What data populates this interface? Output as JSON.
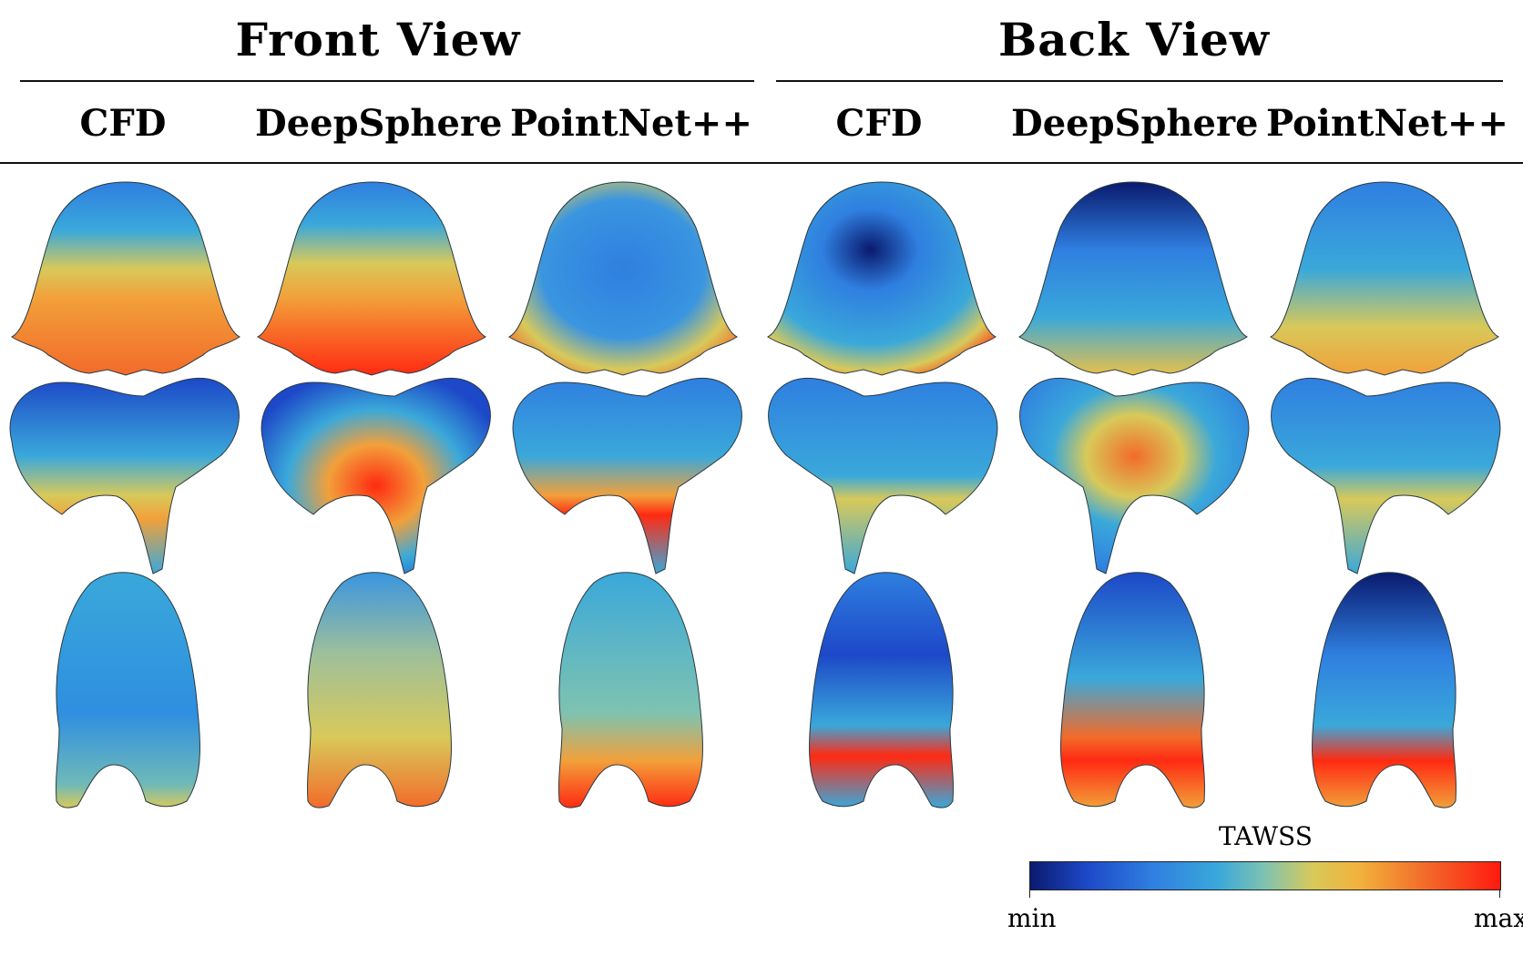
{
  "header": {
    "front_title": "Front View",
    "back_title": "Back View",
    "columns": [
      "CFD",
      "DeepSphere",
      "PointNet++",
      "CFD",
      "DeepSphere",
      "PointNet++"
    ]
  },
  "colorbar": {
    "title": "TAWSS",
    "min_label": "min",
    "max_label": "max",
    "colors": [
      "#0a1a6e",
      "#1d48c8",
      "#2f7fe0",
      "#3aa8da",
      "#7fc3b0",
      "#d8c95a",
      "#f2b23c",
      "#f26b2a",
      "#ff1a10"
    ]
  },
  "renderings": [
    [
      "cap-cfd-front",
      "cap-deepsphere-front",
      "cap-pointnet-front",
      "cap-cfd-back",
      "cap-deepsphere-back",
      "cap-pointnet-back"
    ],
    [
      "saddle-cfd-front",
      "saddle-deepsphere-front",
      "saddle-pointnet-front",
      "saddle-cfd-back",
      "saddle-deepsphere-back",
      "saddle-pointnet-back"
    ],
    [
      "dome-cfd-front",
      "dome-deepsphere-front",
      "dome-pointnet-front",
      "dome-cfd-back",
      "dome-deepsphere-back",
      "dome-pointnet-back"
    ]
  ]
}
